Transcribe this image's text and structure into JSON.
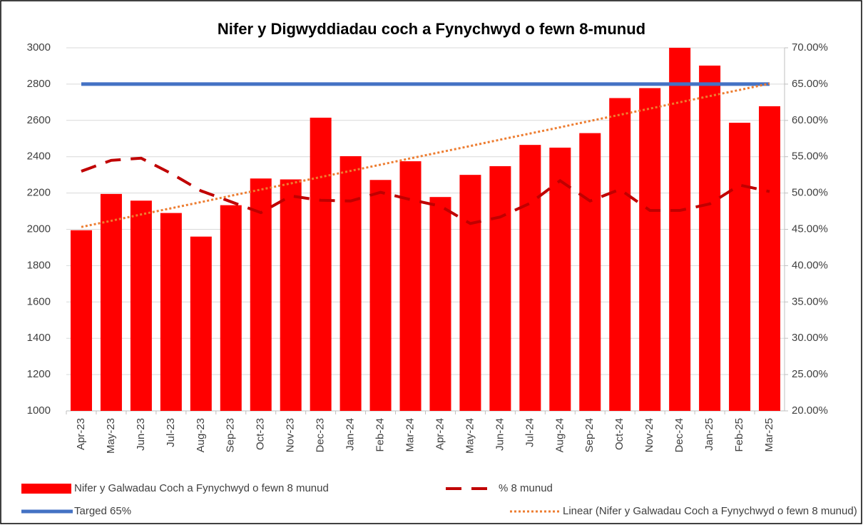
{
  "chart_data": {
    "type": "combo",
    "title": "Nifer y Digwyddiadau coch a Fynychwyd o fewn 8-munud",
    "categories": [
      "Apr-23",
      "May-23",
      "Jun-23",
      "Jul-23",
      "Aug-23",
      "Sep-23",
      "Oct-23",
      "Nov-23",
      "Dec-23",
      "Jan-24",
      "Feb-24",
      "Mar-24",
      "Apr-24",
      "May-24",
      "Jun-24",
      "Jul-24",
      "Aug-24",
      "Sep-24",
      "Oct-24",
      "Nov-24",
      "Dec-24",
      "Jan-25",
      "Feb-25",
      "Mar-25"
    ],
    "series": [
      {
        "name": "Nifer y Galwadau Coch a Fynychwyd o fewn 8 munud",
        "type": "bar",
        "color": "#ff0000",
        "values": [
          1995,
          2195,
          2158,
          2090,
          1960,
          2133,
          2280,
          2275,
          2615,
          2403,
          2272,
          2375,
          2178,
          2300,
          2348,
          2465,
          2450,
          2530,
          2723,
          2778,
          3000,
          2902,
          2587,
          2678
        ]
      },
      {
        "name": "% 8 munud",
        "type": "line",
        "dash": "dashed",
        "axis": "y2",
        "color": "#c00000",
        "values": [
          53.0,
          54.5,
          54.8,
          52.7,
          50.3,
          48.8,
          47.3,
          49.6,
          49.0,
          48.9,
          50.1,
          49.1,
          48.2,
          45.8,
          46.7,
          48.6,
          51.7,
          48.9,
          50.5,
          47.6,
          47.6,
          48.5,
          51.1,
          50.2
        ]
      },
      {
        "name": "Targed 65%",
        "type": "line",
        "dash": "solid",
        "axis": "y2",
        "color": "#4472c4",
        "values": [
          65,
          65,
          65,
          65,
          65,
          65,
          65,
          65,
          65,
          65,
          65,
          65,
          65,
          65,
          65,
          65,
          65,
          65,
          65,
          65,
          65,
          65,
          65,
          65
        ]
      },
      {
        "name": "Linear (Nifer y Galwadau Coch a Fynychwyd o fewn 8 munud)",
        "type": "line",
        "dash": "dotted",
        "color": "#ed7d31",
        "values": [
          2013,
          2047,
          2082,
          2116,
          2150,
          2185,
          2219,
          2253,
          2288,
          2322,
          2356,
          2391,
          2425,
          2459,
          2494,
          2528,
          2562,
          2597,
          2631,
          2665,
          2700,
          2734,
          2768,
          2803
        ]
      }
    ],
    "ylim": [
      1000,
      3000
    ],
    "yticks": [
      1000,
      1200,
      1400,
      1600,
      1800,
      2000,
      2200,
      2400,
      2600,
      2800,
      3000
    ],
    "y2lim": [
      20,
      70
    ],
    "y2ticks": [
      {
        "value": 20,
        "label": "20.00%"
      },
      {
        "value": 25,
        "label": "25.00%"
      },
      {
        "value": 30,
        "label": "30.00%"
      },
      {
        "value": 35,
        "label": "35.00%"
      },
      {
        "value": 40,
        "label": "40.00%"
      },
      {
        "value": 45,
        "label": "45.00%"
      },
      {
        "value": 50,
        "label": "50.00%"
      },
      {
        "value": 55,
        "label": "55.00%"
      },
      {
        "value": 60,
        "label": "60.00%"
      },
      {
        "value": 65,
        "label": "65.00%"
      },
      {
        "value": 70,
        "label": "70.00%"
      }
    ],
    "grid": true,
    "legend": "bottom"
  }
}
